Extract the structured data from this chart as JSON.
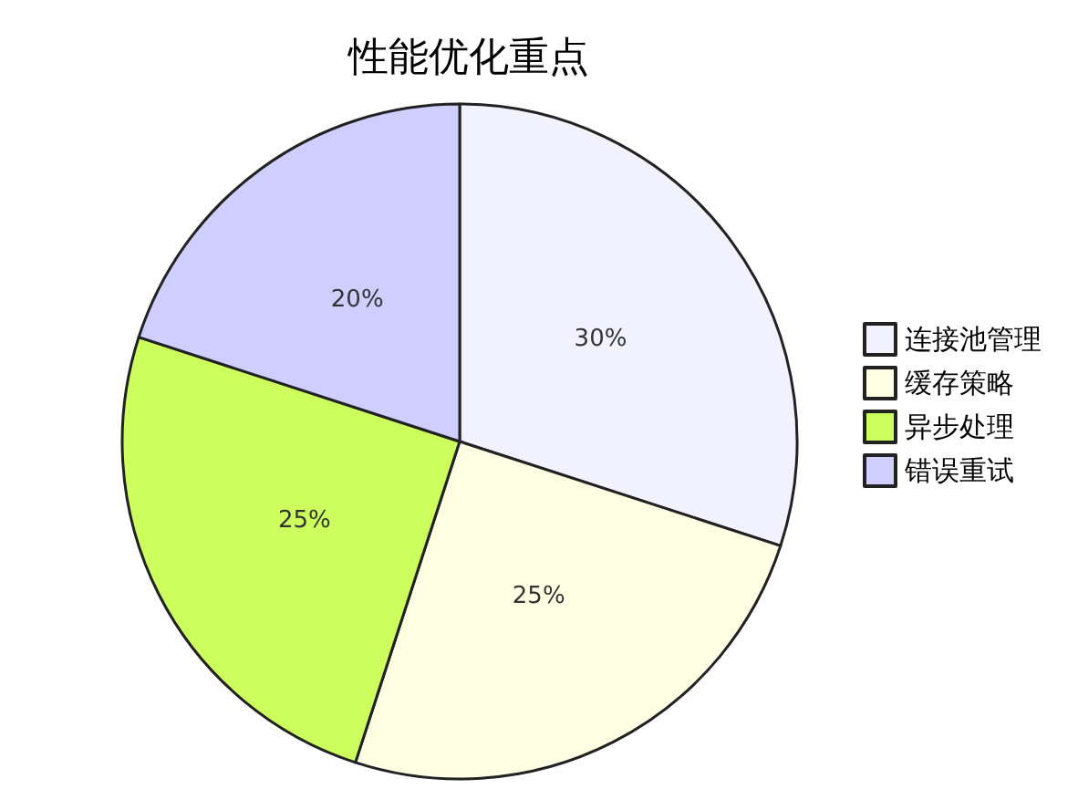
{
  "chart_data": {
    "type": "pie",
    "title": "性能优化重点",
    "categories": [
      "连接池管理",
      "缓存策略",
      "异步处理",
      "错误重试"
    ],
    "values": [
      30,
      25,
      25,
      20
    ],
    "colors": [
      "#f1f1ff",
      "#ffffe3",
      "#ccff5e",
      "#cfcfff"
    ],
    "value_labels": [
      "30%",
      "25%",
      "25%",
      "20%"
    ],
    "legend": "right"
  }
}
